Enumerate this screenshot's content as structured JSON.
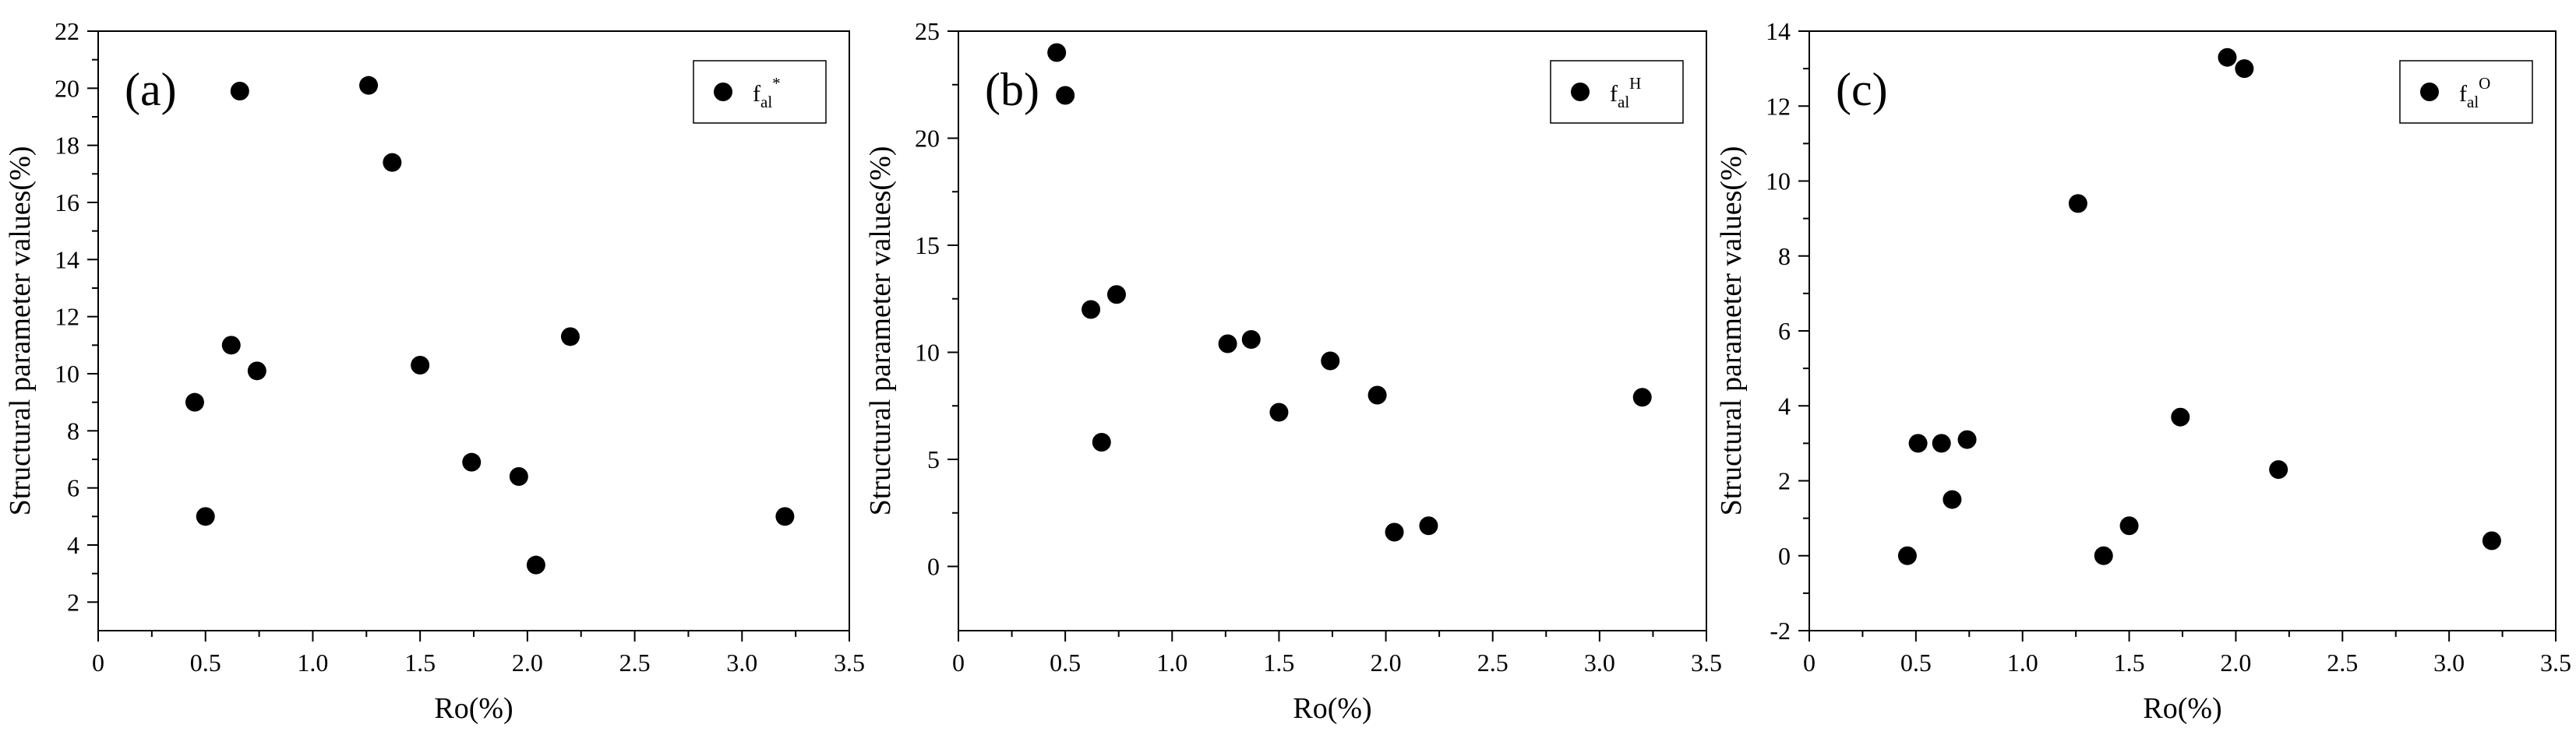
{
  "colors": {
    "background": "#ffffff",
    "axis": "#000000",
    "marker": "#000000",
    "legend_border": "#000000"
  },
  "chart_data": [
    {
      "type": "scatter",
      "panel_label": "(a)",
      "xlabel": "Ro(%)",
      "ylabel": "Structural parameter values(%)",
      "xlim": [
        0,
        3.5
      ],
      "ylim": [
        1,
        22
      ],
      "xticks": [
        0,
        0.5,
        1.0,
        1.5,
        2.0,
        2.5,
        3.0,
        3.5
      ],
      "xtick_labels": [
        "0",
        "0.5",
        "1.0",
        "1.5",
        "2.0",
        "2.5",
        "3.0",
        "3.5"
      ],
      "yticks": [
        2,
        4,
        6,
        8,
        10,
        12,
        14,
        16,
        18,
        20,
        22
      ],
      "ytick_labels": [
        "2",
        "4",
        "6",
        "8",
        "10",
        "12",
        "14",
        "16",
        "18",
        "20",
        "22"
      ],
      "legend": {
        "base": "f",
        "sub": "al",
        "sup": "*",
        "position": "top-right"
      },
      "grid": false,
      "points": [
        {
          "x": 0.45,
          "y": 9.0
        },
        {
          "x": 0.5,
          "y": 5.0
        },
        {
          "x": 0.62,
          "y": 11.0
        },
        {
          "x": 0.66,
          "y": 19.9
        },
        {
          "x": 0.74,
          "y": 10.1
        },
        {
          "x": 1.26,
          "y": 20.1
        },
        {
          "x": 1.37,
          "y": 17.4
        },
        {
          "x": 1.5,
          "y": 10.3
        },
        {
          "x": 1.74,
          "y": 6.9
        },
        {
          "x": 1.96,
          "y": 6.4
        },
        {
          "x": 2.04,
          "y": 3.3
        },
        {
          "x": 2.2,
          "y": 11.3
        },
        {
          "x": 3.2,
          "y": 5.0
        }
      ]
    },
    {
      "type": "scatter",
      "panel_label": "(b)",
      "xlabel": "Ro(%)",
      "ylabel": "Structural parameter values(%)",
      "xlim": [
        0,
        3.5
      ],
      "ylim": [
        -3,
        25
      ],
      "xticks": [
        0,
        0.5,
        1.0,
        1.5,
        2.0,
        2.5,
        3.0,
        3.5
      ],
      "xtick_labels": [
        "0",
        "0.5",
        "1.0",
        "1.5",
        "2.0",
        "2.5",
        "3.0",
        "3.5"
      ],
      "yticks": [
        0,
        5,
        10,
        15,
        20,
        25
      ],
      "ytick_labels": [
        "0",
        "5",
        "10",
        "15",
        "20",
        "25"
      ],
      "legend": {
        "base": "f",
        "sub": "al",
        "sup": "H",
        "position": "top-right"
      },
      "grid": false,
      "points": [
        {
          "x": 0.46,
          "y": 24.0
        },
        {
          "x": 0.5,
          "y": 22.0
        },
        {
          "x": 0.62,
          "y": 12.0
        },
        {
          "x": 0.67,
          "y": 5.8
        },
        {
          "x": 0.74,
          "y": 12.7
        },
        {
          "x": 1.26,
          "y": 10.4
        },
        {
          "x": 1.37,
          "y": 10.6
        },
        {
          "x": 1.5,
          "y": 7.2
        },
        {
          "x": 1.74,
          "y": 9.6
        },
        {
          "x": 1.96,
          "y": 8.0
        },
        {
          "x": 2.04,
          "y": 1.6
        },
        {
          "x": 2.2,
          "y": 1.9
        },
        {
          "x": 3.2,
          "y": 7.9
        }
      ]
    },
    {
      "type": "scatter",
      "panel_label": "(c)",
      "xlabel": "Ro(%)",
      "ylabel": "Structural parameter values(%)",
      "xlim": [
        0,
        3.5
      ],
      "ylim": [
        -2,
        14
      ],
      "xticks": [
        0,
        0.5,
        1.0,
        1.5,
        2.0,
        2.5,
        3.0,
        3.5
      ],
      "xtick_labels": [
        "0",
        "0.5",
        "1.0",
        "1.5",
        "2.0",
        "2.5",
        "3.0",
        "3.5"
      ],
      "yticks": [
        -2,
        0,
        2,
        4,
        6,
        8,
        10,
        12,
        14
      ],
      "ytick_labels": [
        "-2",
        "0",
        "2",
        "4",
        "6",
        "8",
        "10",
        "12",
        "14"
      ],
      "legend": {
        "base": "f",
        "sub": "al",
        "sup": "O",
        "position": "top-right"
      },
      "grid": false,
      "points": [
        {
          "x": 0.46,
          "y": 0.0
        },
        {
          "x": 0.51,
          "y": 3.0
        },
        {
          "x": 0.62,
          "y": 3.0
        },
        {
          "x": 0.67,
          "y": 1.5
        },
        {
          "x": 0.74,
          "y": 3.1
        },
        {
          "x": 1.26,
          "y": 9.4
        },
        {
          "x": 1.38,
          "y": 0.0
        },
        {
          "x": 1.5,
          "y": 0.8
        },
        {
          "x": 1.74,
          "y": 3.7
        },
        {
          "x": 1.96,
          "y": 13.3
        },
        {
          "x": 2.04,
          "y": 13.0
        },
        {
          "x": 2.2,
          "y": 2.3
        },
        {
          "x": 3.2,
          "y": 0.4
        }
      ]
    }
  ]
}
